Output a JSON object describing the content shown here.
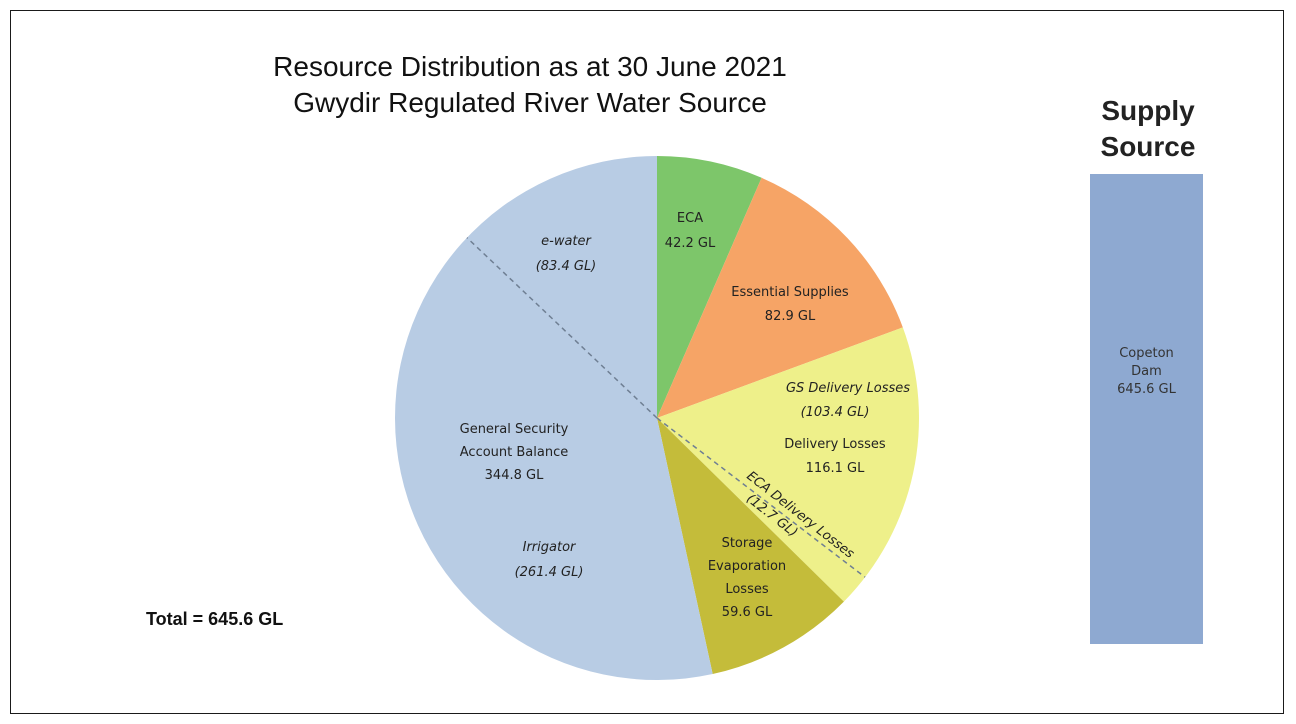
{
  "chart_data": {
    "type": "pie",
    "title": "Resource Distribution as at 30 June 2021",
    "subtitle": "Gwydir Regulated River Water Source",
    "unit": "GL",
    "total_label": "Total = 645.6 GL",
    "slices": [
      {
        "name": "ECA",
        "value_label": "42.2 GL",
        "value": 42.2,
        "color": "#7dc66a"
      },
      {
        "name": "Essential Supplies",
        "value_label": "82.9 GL",
        "value": 82.9,
        "color": "#f6a466"
      },
      {
        "name": "Delivery Losses",
        "value_label": "116.1 GL",
        "value": 116.1,
        "color": "#eef08a",
        "sub_parts": [
          {
            "name": "GS Delivery Losses",
            "value_label": "(103.4 GL)",
            "value": 103.4
          },
          {
            "name": "ECA Delivery Losses",
            "value_label": "(12.7 GL)",
            "value": 12.7
          }
        ]
      },
      {
        "name_lines": [
          "Storage",
          "Evaporation",
          "Losses"
        ],
        "value_label": "59.6 GL",
        "value": 59.6,
        "color": "#c4bc3a"
      },
      {
        "name_lines": [
          "General Security",
          "Account Balance"
        ],
        "value_label": "344.8 GL",
        "value": 344.8,
        "color": "#b8cce4",
        "sub_parts": [
          {
            "name": "e-water",
            "value_label": "(83.4 GL)",
            "value": 83.4
          },
          {
            "name": "Irrigator",
            "value_label": "(261.4 GL)",
            "value": 261.4
          }
        ]
      }
    ],
    "supply": {
      "title_lines": [
        "Supply",
        "Source"
      ],
      "label_lines": [
        "Copeton",
        "Dam",
        "645.6 GL"
      ],
      "value": 645.6,
      "color": "#8ea9d1"
    }
  }
}
